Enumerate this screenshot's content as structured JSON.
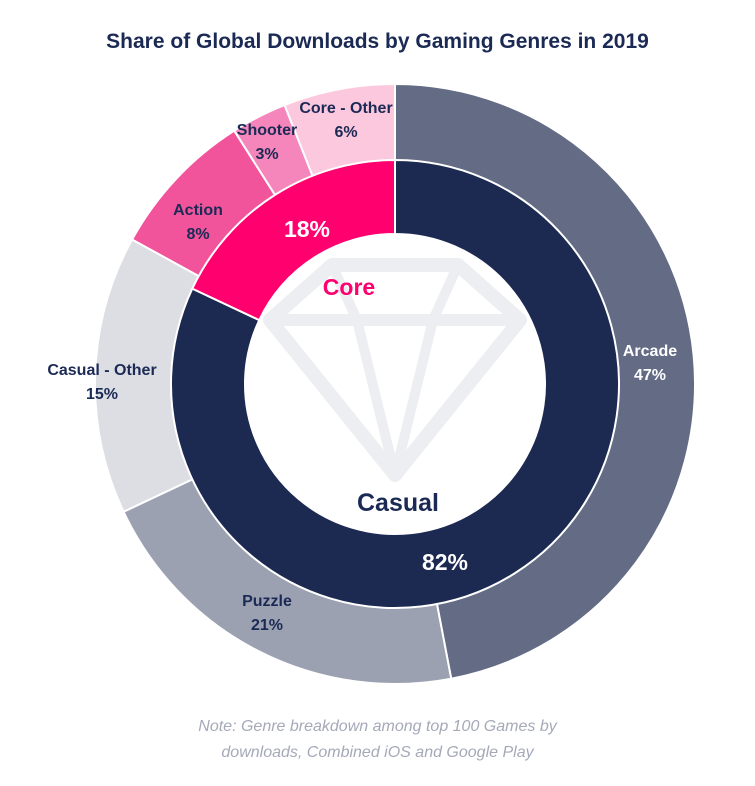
{
  "title": "Share of Global Downloads by Gaming Genres in 2019",
  "note": {
    "line1": "Note: Genre breakdown among top 100 Games by",
    "line2": "downloads, Combined iOS and Google Play"
  },
  "chart_data": {
    "type": "pie",
    "subtype": "nested-donut",
    "title": "Share of Global Downloads by Gaming Genres in 2019",
    "inner_ring": [
      {
        "name": "Casual",
        "value": 82,
        "label": "82%",
        "color": "#1c2951",
        "label_color": "#ffffff"
      },
      {
        "name": "Core",
        "value": 18,
        "label": "18%",
        "color": "#ff006e",
        "label_color": "#ffffff"
      }
    ],
    "outer_ring": [
      {
        "name": "Arcade",
        "value": 47,
        "label": "47%",
        "parent": "Casual",
        "color": "#636b85",
        "label_color": "#ffffff"
      },
      {
        "name": "Puzzle",
        "value": 21,
        "label": "21%",
        "parent": "Casual",
        "color": "#9ca1b2",
        "label_color": "#1b2a55"
      },
      {
        "name": "Casual - Other",
        "value": 15,
        "label": "15%",
        "parent": "Casual",
        "color": "#dcdee4",
        "label_color": "#1b2a55"
      },
      {
        "name": "Action",
        "value": 8,
        "label": "8%",
        "parent": "Core",
        "color": "#f2549b",
        "label_color": "#1b2a55"
      },
      {
        "name": "Shooter",
        "value": 3,
        "label": "3%",
        "parent": "Core",
        "color": "#f586bb",
        "label_color": "#1b2a55"
      },
      {
        "name": "Core - Other",
        "value": 6,
        "label": "6%",
        "parent": "Core",
        "color": "#fcc8de",
        "label_color": "#1b2a55"
      }
    ],
    "center_labels": [
      {
        "text": "Core",
        "color": "#ff006e"
      },
      {
        "text": "Casual",
        "color": "#1b2a55"
      }
    ]
  }
}
